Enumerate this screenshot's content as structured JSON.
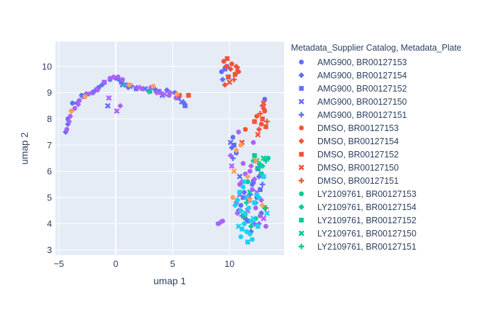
{
  "chart_data": {
    "type": "scatter",
    "title": "",
    "xlabel": "umap 1",
    "ylabel": "umap 2",
    "xlim": [
      -5.3,
      14.8
    ],
    "ylim": [
      2.8,
      10.95
    ],
    "xticks": [
      -5,
      0,
      5,
      10
    ],
    "yticks": [
      3,
      4,
      5,
      6,
      7,
      8,
      9,
      10
    ],
    "grid": true,
    "legend_title": "Metadata_Supplier Catalog, Metadata_Plate",
    "legend_position": "right",
    "series": [
      {
        "name": "AMG900, BR00127153",
        "color": "#636efa",
        "symbol": "circle",
        "x": [
          -4.2,
          -3.8,
          -3.0,
          -2.0,
          -1.5,
          -0.5,
          0.3,
          3.5,
          5.2,
          6.0,
          9.3,
          9.8,
          10.3,
          10.6,
          11.0,
          11.4,
          12.0,
          12.4,
          12.8,
          13.1
        ],
        "y": [
          8.0,
          8.6,
          8.9,
          9.0,
          9.2,
          9.5,
          9.5,
          9.1,
          9.0,
          8.6,
          9.8,
          10.0,
          7.3,
          6.7,
          4.7,
          4.2,
          5.5,
          5.0,
          4.4,
          8.75
        ]
      },
      {
        "name": "AMG900, BR00127154",
        "color": "#636efa",
        "symbol": "diamond",
        "x": [
          -4.4,
          -4.2,
          -3.4,
          -2.6,
          -1.2,
          0.0,
          1.1,
          3.3,
          4.5,
          9.4,
          9.7,
          10.2,
          10.8,
          11.3,
          11.9,
          12.3,
          12.6
        ],
        "y": [
          7.5,
          7.8,
          8.6,
          8.95,
          9.3,
          9.55,
          9.2,
          9.2,
          9.1,
          9.5,
          10.0,
          6.9,
          4.5,
          5.2,
          3.7,
          4.8,
          5.8
        ]
      },
      {
        "name": "AMG900, BR00127152",
        "color": "#636efa",
        "symbol": "square",
        "x": [
          -2.8,
          -1.0,
          0.5,
          1.8,
          3.8,
          5.5,
          6.1,
          9.6,
          10.4,
          11.2,
          11.6,
          12.1,
          12.7
        ],
        "y": [
          8.85,
          9.4,
          9.4,
          9.15,
          9.05,
          8.8,
          8.5,
          9.9,
          7.0,
          5.0,
          4.1,
          5.6,
          5.3
        ]
      },
      {
        "name": "AMG900, BR00127150",
        "color": "#636efa",
        "symbol": "x",
        "x": [
          -0.7,
          0.6,
          2.6,
          4.1,
          5.8,
          9.9,
          10.1,
          10.9,
          11.7,
          12.5
        ],
        "y": [
          8.5,
          9.3,
          9.15,
          8.9,
          8.65,
          9.6,
          7.1,
          5.8,
          4.9,
          6.1
        ]
      },
      {
        "name": "AMG900, BR00127151",
        "color": "#636efa",
        "symbol": "cross",
        "x": [
          -1.8,
          1.4,
          2.9,
          10.3,
          11.1,
          11.8,
          12.2,
          12.9
        ],
        "y": [
          9.1,
          9.25,
          9.05,
          6.5,
          4.3,
          5.1,
          4.0,
          5.5
        ]
      },
      {
        "name": "DMSO, BR00127153",
        "color": "#ef553b",
        "symbol": "circle",
        "x": [
          9.5,
          9.9,
          10.2,
          10.8,
          12.4,
          12.8,
          13.1,
          11.4
        ],
        "y": [
          10.2,
          9.6,
          10.1,
          9.8,
          8.1,
          7.8,
          8.3,
          7.6
        ]
      },
      {
        "name": "DMSO, BR00127154",
        "color": "#ef553b",
        "symbol": "diamond",
        "x": [
          9.6,
          10.1,
          10.6,
          12.6,
          13.0,
          -3.9
        ],
        "y": [
          9.3,
          9.9,
          10.0,
          7.6,
          8.4,
          8.3
        ]
      },
      {
        "name": "DMSO, BR00127152",
        "color": "#ef553b",
        "symbol": "square",
        "x": [
          9.8,
          10.5,
          12.2,
          12.9,
          13.2,
          5.6,
          6.4
        ],
        "y": [
          10.3,
          9.7,
          7.9,
          8.0,
          7.7,
          8.9,
          8.9
        ]
      },
      {
        "name": "DMSO, BR00127150",
        "color": "#ef553b",
        "symbol": "x",
        "x": [
          10.0,
          10.7,
          12.5,
          13.0,
          11.1
        ],
        "y": [
          9.4,
          9.9,
          7.4,
          8.6,
          7.1
        ]
      },
      {
        "name": "DMSO, BR00127151",
        "color": "#ef553b",
        "symbol": "cross",
        "x": [
          9.7,
          10.4,
          12.7,
          13.3,
          12.9,
          13.2
        ],
        "y": [
          10.0,
          9.5,
          8.2,
          7.9,
          8.5,
          4.6
        ]
      },
      {
        "name": "LY2109761, BR00127153",
        "color": "#00cc96",
        "symbol": "circle",
        "x": [
          13.4,
          12.6,
          11.6,
          12.3,
          0.8
        ],
        "y": [
          6.5,
          6.3,
          5.6,
          4.2,
          9.3
        ]
      },
      {
        "name": "LY2109761, BR00127154",
        "color": "#00cc96",
        "symbol": "diamond",
        "x": [
          12.1,
          12.9,
          13.1,
          11.9
        ],
        "y": [
          6.4,
          6.2,
          4.6,
          3.9
        ]
      },
      {
        "name": "LY2109761, BR00127152",
        "color": "#00cc96",
        "symbol": "square",
        "x": [
          12.2,
          12.8,
          3.0,
          11.3
        ],
        "y": [
          6.6,
          5.9,
          9.05,
          4.3
        ]
      },
      {
        "name": "LY2109761, BR00127150",
        "color": "#00cc96",
        "symbol": "x",
        "x": [
          12.4,
          13.0,
          11.8
        ],
        "y": [
          6.4,
          6.5,
          5.2
        ]
      },
      {
        "name": "LY2109761, BR00127151",
        "color": "#00cc96",
        "symbol": "cross",
        "x": [
          12.5,
          13.2,
          11.5
        ],
        "y": [
          6.1,
          6.4,
          4.8
        ]
      },
      {
        "name": "",
        "color": "#ab63fa",
        "symbol": "circle",
        "x": [
          -4.3,
          -4.0,
          -3.6,
          -3.2,
          -2.4,
          -1.6,
          -1.0,
          -0.5,
          0.2,
          0.6,
          1.0,
          2.3,
          3.1,
          3.9,
          4.7,
          5.3,
          9.0,
          9.4,
          10.6,
          10.9,
          11.4,
          11.8,
          12.0,
          12.3,
          12.7,
          13.2,
          10.8,
          11.2,
          12.1
        ],
        "y": [
          7.6,
          8.1,
          8.4,
          8.7,
          8.95,
          9.1,
          9.4,
          9.55,
          9.6,
          9.5,
          9.3,
          9.15,
          9.2,
          9.0,
          8.9,
          8.8,
          4.0,
          4.1,
          4.8,
          5.5,
          5.9,
          6.0,
          5.3,
          4.6,
          4.3,
          3.9,
          7.5,
          6.3,
          7.1
        ]
      },
      {
        "name": "",
        "color": "#ab63fa",
        "symbol": "diamond",
        "x": [
          -4.1,
          -3.3,
          -2.1,
          -0.2,
          0.4,
          3.6,
          4.8,
          9.2,
          10.1,
          10.7,
          11.1,
          11.5,
          12.2,
          12.6,
          11.9,
          12.8
        ],
        "y": [
          7.9,
          8.55,
          9.0,
          9.6,
          8.5,
          9.0,
          9.0,
          4.05,
          6.6,
          4.4,
          5.6,
          5.0,
          5.7,
          4.0,
          6.2,
          4.9
        ]
      },
      {
        "name": "",
        "color": "#ab63fa",
        "symbol": "x",
        "x": [
          -0.6,
          0.1,
          2.0,
          4.3,
          10.2,
          10.9,
          11.6,
          12.4,
          13.0
        ],
        "y": [
          8.8,
          8.3,
          9.2,
          8.95,
          6.2,
          5.1,
          4.5,
          5.2,
          4.2
        ]
      },
      {
        "name": "",
        "color": "#19d3f3",
        "symbol": "circle",
        "x": [
          11.0,
          11.5,
          11.9,
          10.7,
          12.4,
          11.2,
          11.7,
          12.0,
          11.3
        ],
        "y": [
          3.5,
          3.7,
          4.1,
          4.9,
          5.1,
          5.4,
          4.6,
          3.4,
          4.0
        ]
      },
      {
        "name": "",
        "color": "#19d3f3",
        "symbol": "square",
        "x": [
          11.1,
          11.6,
          12.2,
          10.9,
          11.4,
          13.0,
          12.5
        ],
        "y": [
          3.8,
          3.3,
          4.8,
          5.2,
          4.4,
          5.8,
          3.9
        ]
      },
      {
        "name": "",
        "color": "#19d3f3",
        "symbol": "diamond",
        "x": [
          11.8,
          11.0,
          12.6,
          11.3,
          10.5
        ],
        "y": [
          3.6,
          4.5,
          5.0,
          5.6,
          4.7
        ]
      },
      {
        "name": "",
        "color": "#19d3f3",
        "symbol": "x",
        "x": [
          12.1,
          11.5,
          10.8,
          13.3
        ],
        "y": [
          4.2,
          5.0,
          3.9,
          4.4
        ]
      },
      {
        "name": "",
        "color": "#ffa15a",
        "symbol": "circle",
        "x": [
          -3.9,
          -2.7,
          1.2,
          3.3,
          10.3,
          11.0
        ],
        "y": [
          8.3,
          8.85,
          9.3,
          9.25,
          5.0,
          7.0
        ]
      },
      {
        "name": "",
        "color": "#ffa15a",
        "symbol": "diamond",
        "x": [
          5.4,
          10.6,
          12.9,
          11.6
        ],
        "y": [
          8.95,
          6.8,
          4.7,
          5.8
        ]
      },
      {
        "name": "",
        "color": "#ffa15a",
        "symbol": "x",
        "x": [
          10.4,
          11.8,
          12.3
        ],
        "y": [
          6.0,
          4.9,
          6.4
        ]
      }
    ]
  }
}
